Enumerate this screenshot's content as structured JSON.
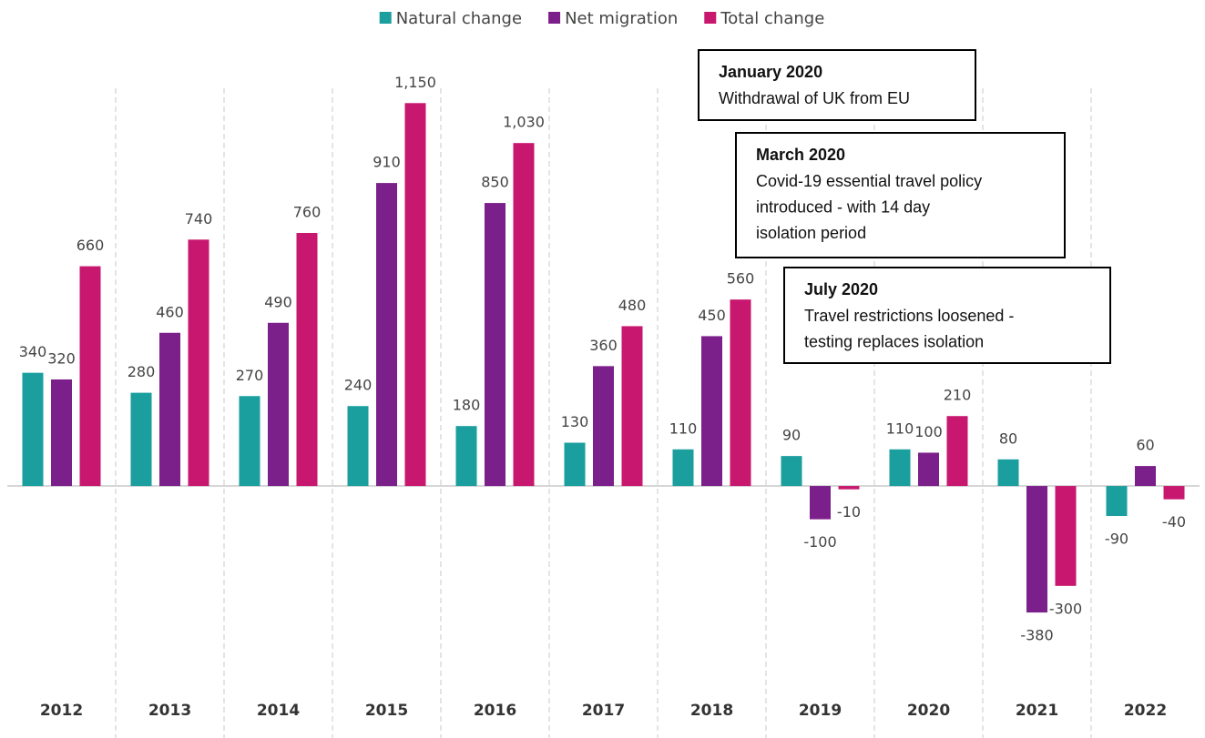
{
  "chart_data": {
    "type": "bar",
    "categories": [
      "2012",
      "2013",
      "2014",
      "2015",
      "2016",
      "2017",
      "2018",
      "2019",
      "2020",
      "2021",
      "2022"
    ],
    "series": [
      {
        "name": "Natural change",
        "color": "#1a9e9e",
        "values": [
          340,
          280,
          270,
          240,
          180,
          130,
          110,
          90,
          110,
          80,
          -90
        ]
      },
      {
        "name": "Net migration",
        "color": "#7b1f8a",
        "values": [
          320,
          460,
          490,
          910,
          850,
          360,
          450,
          -100,
          100,
          -380,
          60
        ]
      },
      {
        "name": "Total change",
        "color": "#c8176e",
        "values": [
          660,
          740,
          760,
          1150,
          1030,
          480,
          560,
          -10,
          210,
          -300,
          -40
        ],
        "value_labels": [
          "660",
          "740",
          "760",
          "1,150",
          "1,030",
          "480",
          "560",
          "-10",
          "210",
          "-300",
          "-40"
        ]
      }
    ],
    "ylim": [
      -500,
      1200
    ],
    "legend": "top",
    "annotations": [
      {
        "title": "January 2020",
        "lines": [
          "Withdrawal of UK from EU"
        ]
      },
      {
        "title": "March 2020",
        "lines": [
          "Covid-19 essential travel policy",
          "introduced - with 14 day",
          "isolation period"
        ]
      },
      {
        "title": "July 2020",
        "lines": [
          "Travel restrictions loosened -",
          "testing replaces isolation"
        ]
      }
    ]
  }
}
